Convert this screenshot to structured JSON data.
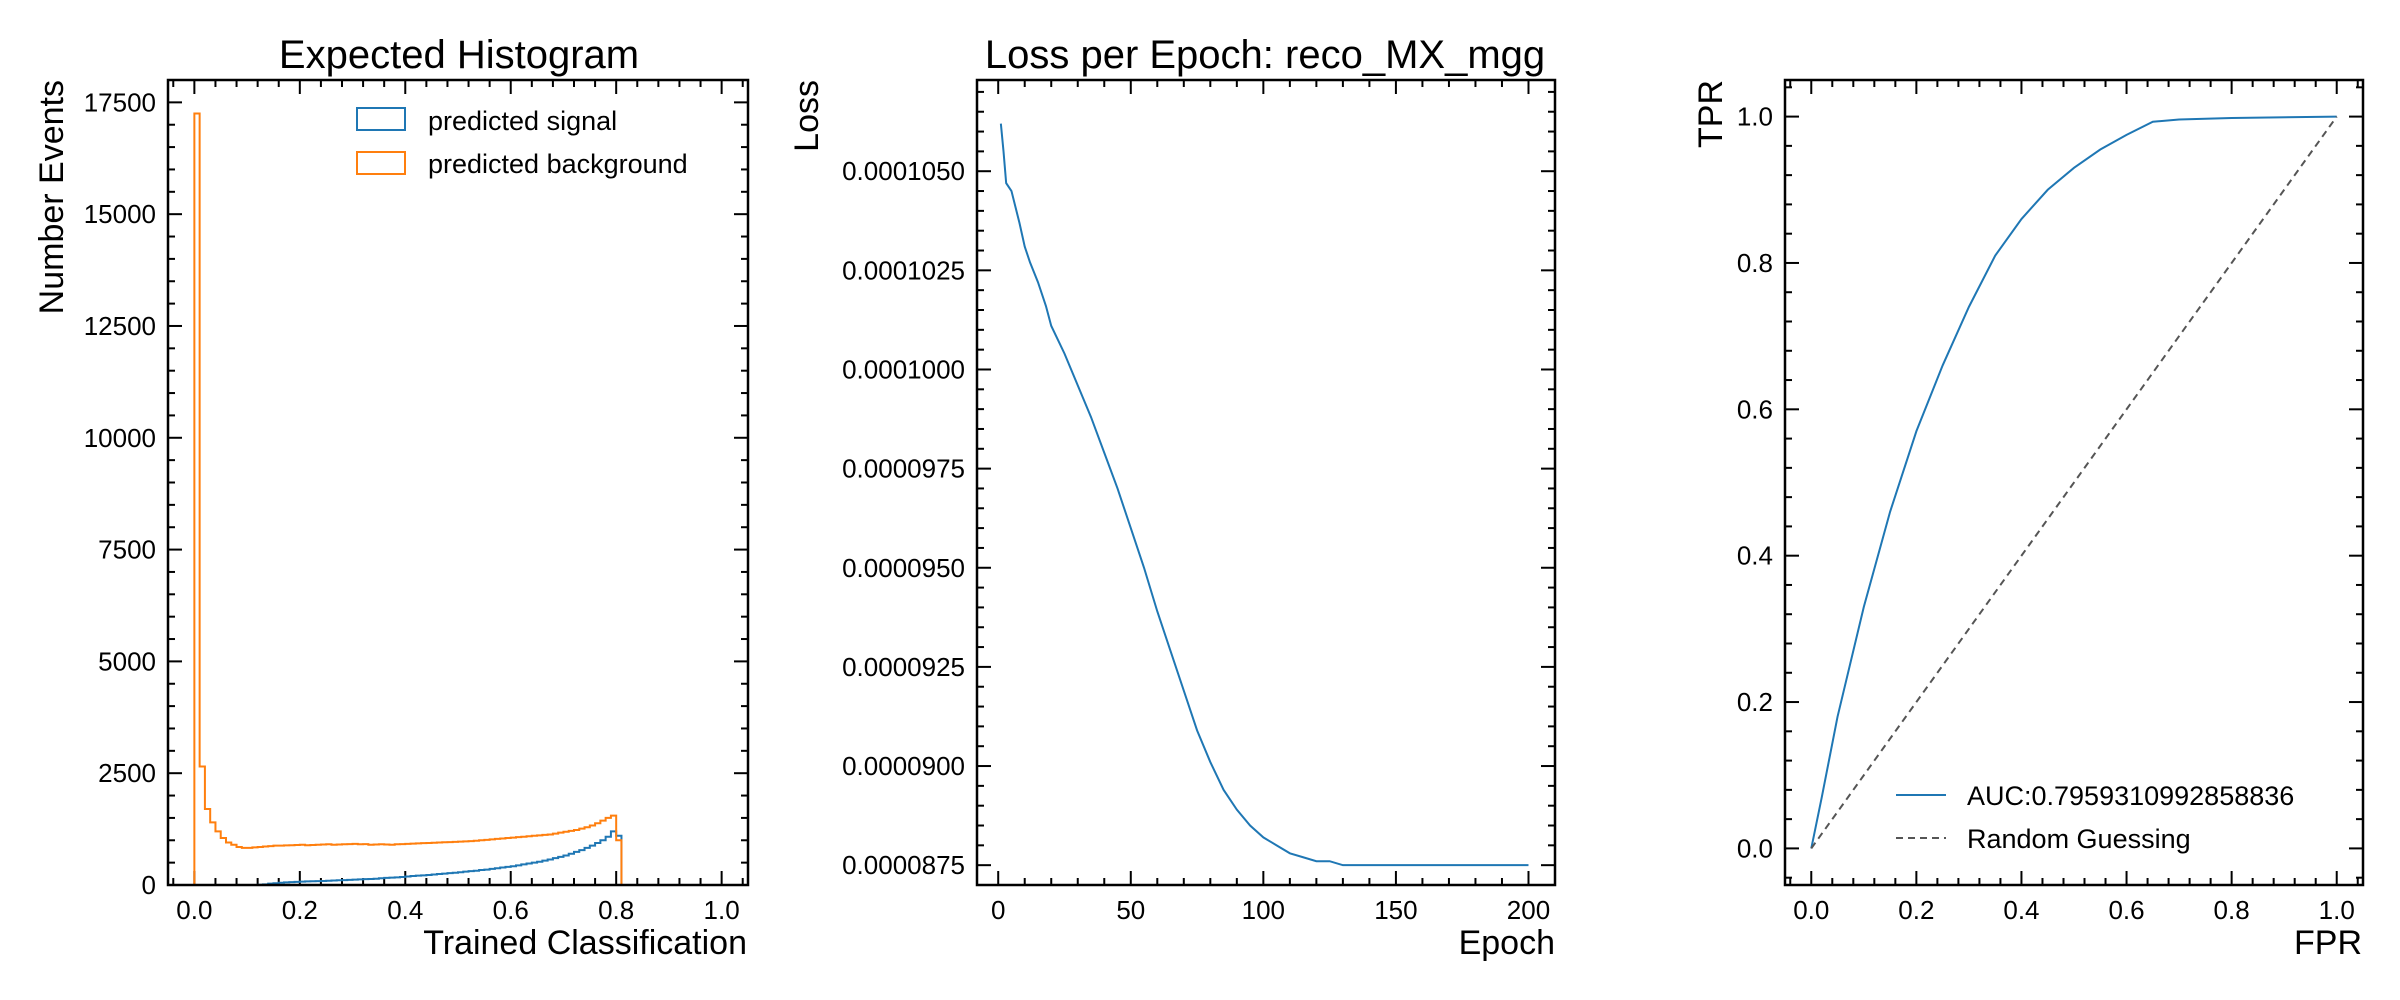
{
  "chart_data": [
    {
      "type": "histogram",
      "title": "Expected Histogram",
      "xlabel": "Trained Classification",
      "ylabel": "Number Events",
      "xlim": [
        -0.05,
        1.05
      ],
      "ylim": [
        0,
        18000
      ],
      "xticks": [
        0.0,
        0.2,
        0.4,
        0.6,
        0.8,
        1.0
      ],
      "xtick_labels": [
        "0.0",
        "0.2",
        "0.4",
        "0.6",
        "0.8",
        "1.0"
      ],
      "yticks": [
        0,
        2500,
        5000,
        7500,
        10000,
        12500,
        15000,
        17500
      ],
      "ytick_labels": [
        "0",
        "2500",
        "5000",
        "7500",
        "10000",
        "12500",
        "15000",
        "17500"
      ],
      "legend_position": "top-right",
      "bin_width": 0.01,
      "series": [
        {
          "name": "predicted signal",
          "color": "#1f77b4",
          "x_start": 0.0,
          "values": [
            0,
            0,
            0,
            0,
            0,
            0,
            0,
            0,
            0,
            0,
            0,
            0,
            5,
            15,
            30,
            40,
            50,
            60,
            65,
            70,
            75,
            80,
            85,
            88,
            90,
            95,
            100,
            105,
            110,
            115,
            120,
            125,
            130,
            135,
            140,
            150,
            160,
            165,
            170,
            180,
            190,
            200,
            210,
            215,
            225,
            235,
            245,
            255,
            265,
            275,
            285,
            300,
            310,
            320,
            335,
            345,
            360,
            375,
            390,
            405,
            420,
            440,
            460,
            480,
            500,
            520,
            545,
            570,
            600,
            630,
            660,
            700,
            740,
            780,
            830,
            880,
            940,
            1000,
            1080,
            1200,
            1100
          ]
        },
        {
          "name": "predicted background",
          "color": "#ff7f0e",
          "x_start": 0.0,
          "values": [
            17250,
            2650,
            1700,
            1400,
            1200,
            1050,
            950,
            900,
            850,
            830,
            830,
            840,
            850,
            860,
            870,
            880,
            880,
            885,
            890,
            895,
            900,
            890,
            895,
            900,
            905,
            910,
            900,
            905,
            910,
            915,
            920,
            910,
            915,
            900,
            905,
            910,
            905,
            900,
            910,
            915,
            920,
            925,
            930,
            935,
            940,
            945,
            950,
            955,
            960,
            965,
            970,
            975,
            980,
            990,
            1000,
            1010,
            1020,
            1030,
            1040,
            1050,
            1060,
            1070,
            1080,
            1090,
            1100,
            1110,
            1120,
            1130,
            1150,
            1170,
            1190,
            1210,
            1230,
            1260,
            1290,
            1330,
            1380,
            1440,
            1500,
            1550,
            1000
          ]
        }
      ]
    },
    {
      "type": "line",
      "title": "Loss per Epoch: reco_MX_mgg",
      "xlabel": "Epoch",
      "ylabel": "Loss",
      "xlim": [
        -8,
        210
      ],
      "ylim": [
        8.7e-05,
        0.0001073
      ],
      "xticks": [
        0,
        50,
        100,
        150,
        200
      ],
      "xtick_labels": [
        "0",
        "50",
        "100",
        "150",
        "200"
      ],
      "yticks": [
        8.75e-05,
        9e-05,
        9.25e-05,
        9.5e-05,
        9.75e-05,
        0.0001,
        0.0001025,
        0.000105
      ],
      "ytick_labels": [
        "0.0000875",
        "0.0000900",
        "0.0000925",
        "0.0000950",
        "0.0000975",
        "0.0001000",
        "0.0001025",
        "0.0001050"
      ],
      "series": [
        {
          "color": "#1f77b4",
          "x": [
            1,
            2,
            3,
            5,
            8,
            10,
            12,
            15,
            18,
            20,
            25,
            30,
            35,
            40,
            45,
            50,
            55,
            60,
            65,
            70,
            75,
            80,
            85,
            90,
            95,
            100,
            105,
            110,
            115,
            120,
            125,
            130,
            140,
            150,
            160,
            175,
            200
          ],
          "y": [
            0.0001062,
            0.0001055,
            0.0001047,
            0.0001045,
            0.0001037,
            0.0001031,
            0.0001027,
            0.0001022,
            0.0001016,
            0.0001011,
            0.0001004,
            9.96e-05,
            9.88e-05,
            9.79e-05,
            9.7e-05,
            9.6e-05,
            9.5e-05,
            9.39e-05,
            9.29e-05,
            9.19e-05,
            9.09e-05,
            9.01e-05,
            8.94e-05,
            8.89e-05,
            8.85e-05,
            8.82e-05,
            8.8e-05,
            8.78e-05,
            8.77e-05,
            8.76e-05,
            8.76e-05,
            8.75e-05,
            8.75e-05,
            8.75e-05,
            8.75e-05,
            8.75e-05,
            8.75e-05
          ]
        }
      ]
    },
    {
      "type": "line",
      "title": "",
      "xlabel": "FPR",
      "ylabel": "TPR",
      "xlim": [
        -0.05,
        1.05
      ],
      "ylim": [
        -0.05,
        1.05
      ],
      "xticks": [
        0.0,
        0.2,
        0.4,
        0.6,
        0.8,
        1.0
      ],
      "xtick_labels": [
        "0.0",
        "0.2",
        "0.4",
        "0.6",
        "0.8",
        "1.0"
      ],
      "yticks": [
        0.0,
        0.2,
        0.4,
        0.6,
        0.8,
        1.0
      ],
      "ytick_labels": [
        "0.0",
        "0.2",
        "0.4",
        "0.6",
        "0.8",
        "1.0"
      ],
      "legend_position": "lower-right",
      "series": [
        {
          "name": "AUC:0.7959310992858836",
          "color": "#1f77b4",
          "style": "solid",
          "x": [
            0,
            0.02,
            0.05,
            0.1,
            0.15,
            0.2,
            0.25,
            0.3,
            0.35,
            0.4,
            0.45,
            0.5,
            0.55,
            0.6,
            0.65,
            0.7,
            0.8,
            1.0
          ],
          "y": [
            0,
            0.07,
            0.18,
            0.33,
            0.46,
            0.57,
            0.66,
            0.74,
            0.81,
            0.86,
            0.9,
            0.93,
            0.955,
            0.975,
            0.993,
            0.996,
            0.998,
            1.0
          ]
        },
        {
          "name": "Random Guessing",
          "color": "#555555",
          "style": "dashed",
          "x": [
            0,
            1
          ],
          "y": [
            0,
            1
          ]
        }
      ]
    }
  ]
}
